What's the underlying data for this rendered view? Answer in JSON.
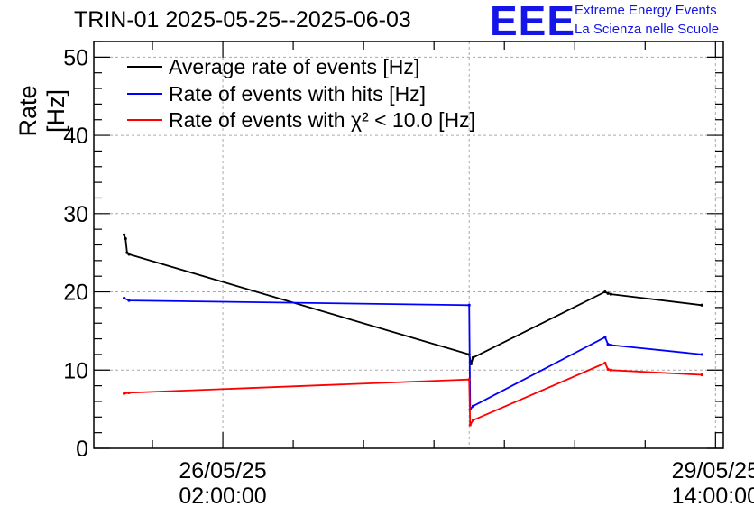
{
  "header": {
    "title": "TRIN-01 2025-05-25--2025-06-03",
    "logo_text": "EEE",
    "brand_line1": "Extreme Energy Events",
    "brand_line2": "La Scienza nelle Scuole"
  },
  "chart_data": {
    "type": "line",
    "title": "TRIN-01 2025-05-25--2025-06-03",
    "xlabel": "",
    "ylabel": "Rate [Hz]",
    "xlim": [
      "2025-05-25T04:00:00",
      "2025-05-29T15:20:00"
    ],
    "ylim": [
      0,
      52
    ],
    "grid": true,
    "legend_position": "top-left",
    "x_ticks": [
      {
        "x": "2025-05-26T02:00:00",
        "line1": "26/05/25",
        "line2": "02:00:00"
      },
      {
        "x": "2025-05-29T14:00:00",
        "line1": "29/05/25",
        "line2": "14:00:00"
      }
    ],
    "y_ticks": [
      0,
      10,
      20,
      30,
      40,
      50
    ],
    "series": [
      {
        "name": "Average rate of events [Hz]",
        "color": "#000000",
        "points": [
          [
            "2025-05-25T09:10:00",
            27.3
          ],
          [
            "2025-05-25T09:25:00",
            26.8
          ],
          [
            "2025-05-25T09:40:00",
            25.0
          ],
          [
            "2025-05-25T10:00:00",
            24.8
          ],
          [
            "2025-05-27T20:00:00",
            12.0
          ],
          [
            "2025-05-27T20:20:00",
            10.8
          ],
          [
            "2025-05-27T20:40:00",
            11.6
          ],
          [
            "2025-05-28T19:10:00",
            20.0
          ],
          [
            "2025-05-28T19:40:00",
            19.8
          ],
          [
            "2025-05-28T20:10:00",
            19.7
          ],
          [
            "2025-05-29T11:40:00",
            18.3
          ]
        ]
      },
      {
        "name": "Rate of events with hits [Hz]",
        "color": "#0000ff",
        "points": [
          [
            "2025-05-25T09:10:00",
            19.2
          ],
          [
            "2025-05-25T10:00:00",
            18.9
          ],
          [
            "2025-05-27T20:00:00",
            18.3
          ],
          [
            "2025-05-27T20:10:00",
            5.0
          ],
          [
            "2025-05-27T20:40:00",
            5.4
          ],
          [
            "2025-05-28T19:10:00",
            14.2
          ],
          [
            "2025-05-28T19:40:00",
            13.3
          ],
          [
            "2025-05-28T20:10:00",
            13.2
          ],
          [
            "2025-05-29T11:40:00",
            12.0
          ]
        ]
      },
      {
        "name": "Rate of events with χ² < 10.0 [Hz]",
        "color": "#ff0000",
        "points": [
          [
            "2025-05-25T09:10:00",
            7.0
          ],
          [
            "2025-05-25T10:00:00",
            7.1
          ],
          [
            "2025-05-27T20:00:00",
            8.8
          ],
          [
            "2025-05-27T20:10:00",
            3.0
          ],
          [
            "2025-05-27T20:40:00",
            3.6
          ],
          [
            "2025-05-28T19:10:00",
            10.9
          ],
          [
            "2025-05-28T19:40:00",
            10.1
          ],
          [
            "2025-05-28T20:10:00",
            10.0
          ],
          [
            "2025-05-29T11:40:00",
            9.4
          ]
        ]
      }
    ]
  }
}
